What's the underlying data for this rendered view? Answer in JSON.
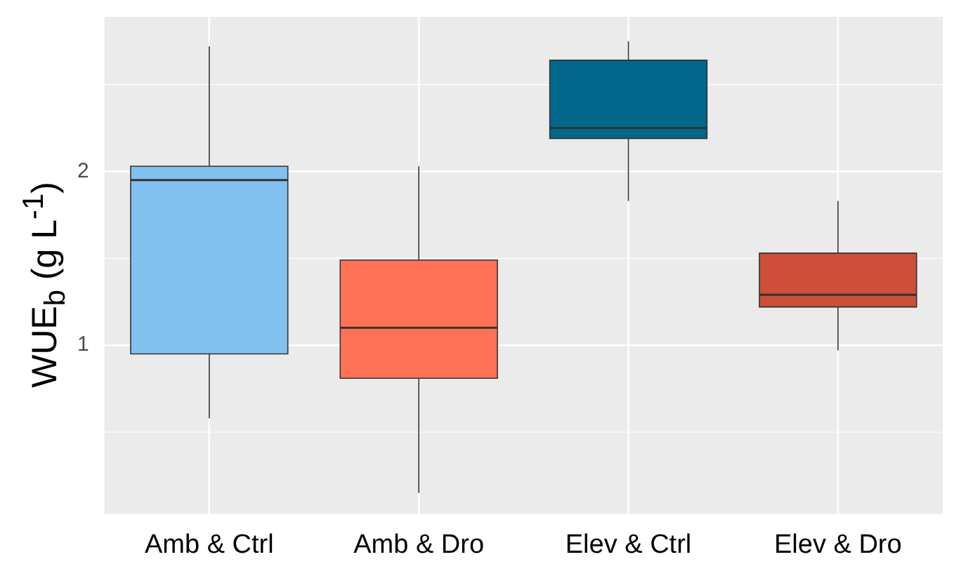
{
  "chart_data": {
    "type": "box",
    "ylabel": "WUE$_{b}$ (g L$^{-1}$)",
    "categories": [
      "Amb & Ctrl",
      "Amb & Dro",
      "Elev & Ctrl",
      "Elev & Dro"
    ],
    "colors": [
      "#82c1ef",
      "#ff7256",
      "#00688b",
      "#cd4f39"
    ],
    "boxes": [
      {
        "low": 0.58,
        "q1": 0.95,
        "median": 1.95,
        "q3": 2.03,
        "high": 2.72
      },
      {
        "low": 0.15,
        "q1": 0.81,
        "median": 1.1,
        "q3": 1.49,
        "high": 2.03
      },
      {
        "low": 1.83,
        "q1": 2.19,
        "median": 2.25,
        "q3": 2.64,
        "high": 2.75
      },
      {
        "low": 0.97,
        "q1": 1.22,
        "median": 1.29,
        "q3": 1.53,
        "high": 1.83
      }
    ],
    "ylim": [
      0.03,
      2.89
    ],
    "yticks": [
      1,
      2
    ],
    "grid": true,
    "legend": false
  }
}
